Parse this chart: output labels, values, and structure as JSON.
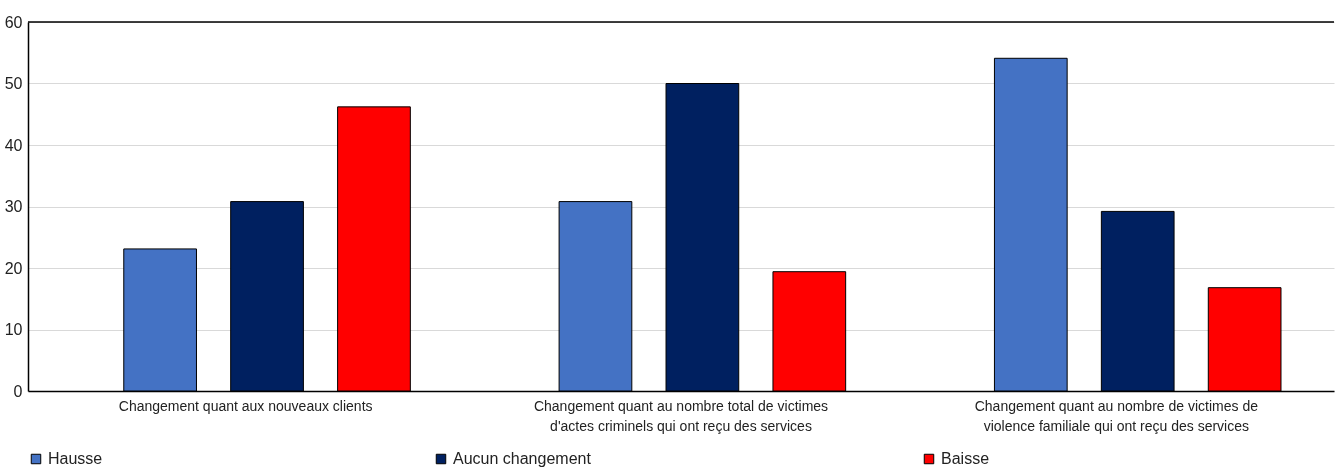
{
  "chart_data": {
    "type": "bar",
    "categories": [
      "Changement quant aux nouveaux clients",
      "Changement quant au nombre total de victimes d'actes criminels qui ont reçu des services",
      "Changement quant au nombre de victimes de violence familiale qui ont reçu des services"
    ],
    "series": [
      {
        "name": "Hausse",
        "color": "#4472c4",
        "values": [
          23.1,
          30.8,
          54.1
        ]
      },
      {
        "name": "Aucun changement",
        "color": "#002060",
        "values": [
          30.8,
          50,
          29.2
        ]
      },
      {
        "name": "Baisse",
        "color": "#ff0000",
        "values": [
          46.2,
          19.4,
          16.8
        ]
      }
    ],
    "ylim": [
      0,
      60
    ],
    "yticks": [
      0,
      10,
      20,
      30,
      40,
      50,
      60
    ],
    "grid": "y",
    "legend": "bottom"
  }
}
